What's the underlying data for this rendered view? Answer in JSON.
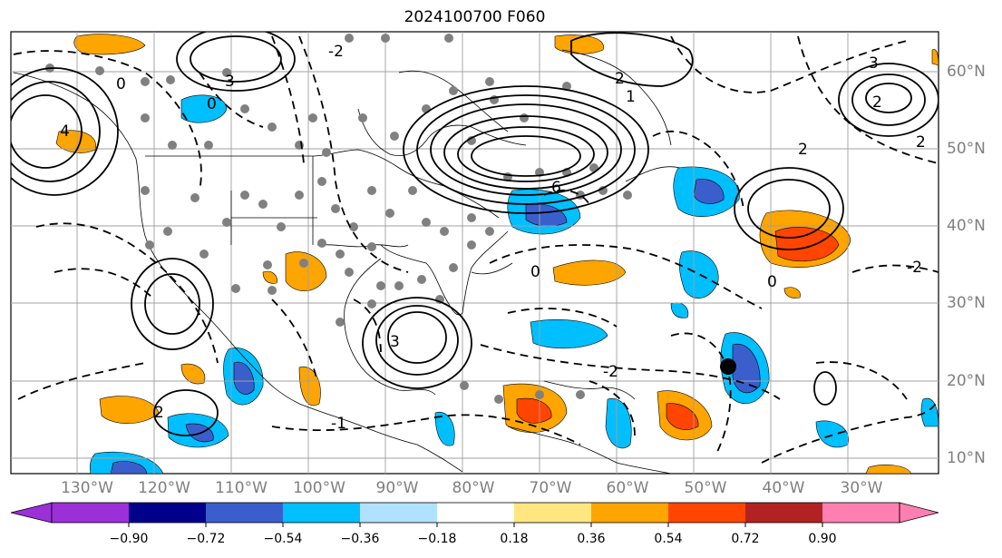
{
  "title": "2024100700 F060",
  "map": {
    "longitude_labels": [
      "130°W",
      "120°W",
      "110°W",
      "100°W",
      "90°W",
      "80°W",
      "70°W",
      "60°W",
      "50°W",
      "40°W",
      "30°W"
    ],
    "latitude_labels": [
      "60°N",
      "50°N",
      "40°N",
      "30°N",
      "20°N",
      "10°N"
    ],
    "contour_labels": [
      "0",
      "3",
      "4",
      "6",
      "2",
      "1",
      "3",
      "2",
      "0",
      "-2",
      "-1",
      "-2",
      "-2",
      "2",
      "0",
      "0",
      "3",
      "2",
      "2"
    ],
    "colors": {
      "positive_contour": "#000000",
      "negative_contour": "#000000",
      "land_border": "#000000",
      "grid": "#a0a0a0",
      "station_marker": "#808080"
    }
  },
  "colorbar": {
    "tick_labels": [
      "−0.90",
      "−0.72",
      "−0.54",
      "−0.36",
      "−0.18",
      "0.18",
      "0.36",
      "0.54",
      "0.72",
      "0.90"
    ],
    "colors": [
      "#9b30d9",
      "#00008b",
      "#3a5fcd",
      "#00bfff",
      "#b0e2ff",
      "#ffffff",
      "#ffe680",
      "#ffa500",
      "#ff4500",
      "#b22222",
      "#ff80b0"
    ]
  }
}
